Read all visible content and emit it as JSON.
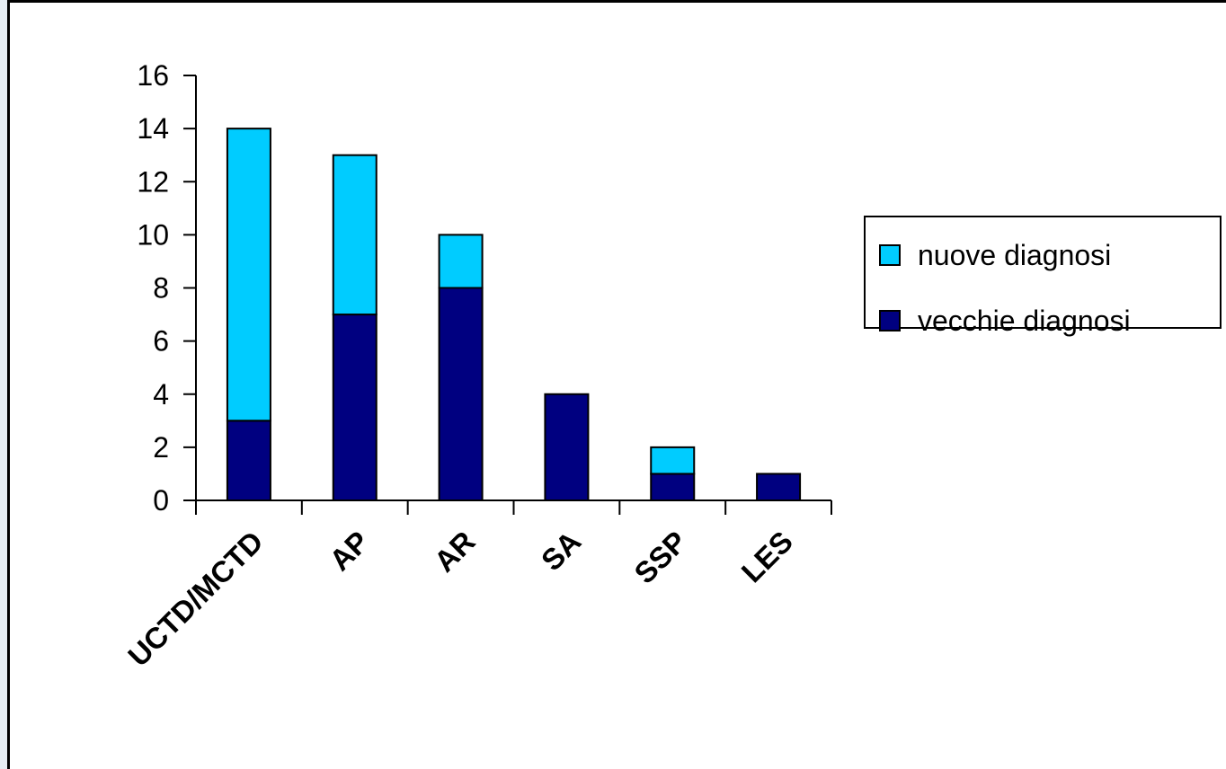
{
  "chart_data": {
    "type": "bar",
    "stacked": true,
    "categories": [
      "UCTD/MCTD",
      "AP",
      "AR",
      "SA",
      "SSP",
      "LES"
    ],
    "series": [
      {
        "name": "vecchie diagnosi",
        "values": [
          3,
          7,
          8,
          4,
          1,
          1
        ],
        "color": "#000080"
      },
      {
        "name": "nuove diagnosi",
        "values": [
          11,
          6,
          2,
          0,
          1,
          0
        ],
        "color": "#00ccff"
      }
    ],
    "yticks": [
      0,
      2,
      4,
      6,
      8,
      10,
      12,
      14,
      16
    ],
    "ylim": [
      0,
      16
    ],
    "grid": false,
    "legend_position": "right",
    "legend_order": [
      "nuove diagnosi",
      "vecchie diagnosi"
    ]
  }
}
